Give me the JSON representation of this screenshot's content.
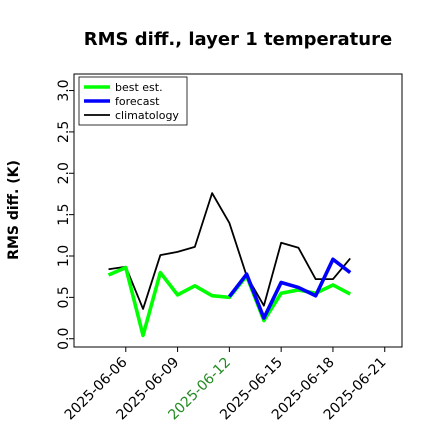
{
  "chart_data": {
    "type": "line",
    "title": "RMS diff., layer 1 temperature",
    "xlabel": "",
    "ylabel": "RMS diff. (K)",
    "xlim": [
      "2025-06-03",
      "2025-06-22"
    ],
    "ylim": [
      -0.1,
      3.2
    ],
    "yticks": [
      0.0,
      0.5,
      1.0,
      1.5,
      2.0,
      2.5,
      3.0
    ],
    "ytick_labels": [
      "0.0",
      "0.5",
      "1.0",
      "1.5",
      "2.0",
      "2.5",
      "3.0"
    ],
    "xticks": [
      "2025-06-06",
      "2025-06-09",
      "2025-06-12",
      "2025-06-15",
      "2025-06-18",
      "2025-06-21"
    ],
    "xtick_colors": [
      "#000000",
      "#000000",
      "#228b22",
      "#000000",
      "#000000",
      "#000000"
    ],
    "grid": false,
    "legend_position": "top-left",
    "x": [
      "2025-06-05",
      "2025-06-06",
      "2025-06-07",
      "2025-06-08",
      "2025-06-09",
      "2025-06-10",
      "2025-06-11",
      "2025-06-12",
      "2025-06-13",
      "2025-06-14",
      "2025-06-15",
      "2025-06-16",
      "2025-06-17",
      "2025-06-18",
      "2025-06-19"
    ],
    "series": [
      {
        "name": "best est.",
        "color": "#00ff00",
        "width": "thick",
        "values": [
          0.77,
          0.86,
          0.04,
          0.8,
          0.53,
          0.64,
          0.52,
          0.5,
          0.76,
          0.22,
          0.55,
          0.59,
          0.55,
          0.65,
          0.54
        ]
      },
      {
        "name": "forecast",
        "color": "#0000ff",
        "width": "thick",
        "values": [
          null,
          null,
          null,
          null,
          null,
          null,
          null,
          0.51,
          0.78,
          0.25,
          0.68,
          0.62,
          0.52,
          0.96,
          0.8
        ]
      },
      {
        "name": "climatology",
        "color": "#000000",
        "width": "thin",
        "values": [
          0.84,
          0.87,
          0.36,
          1.01,
          1.05,
          1.11,
          1.76,
          1.4,
          0.76,
          0.4,
          1.16,
          1.1,
          0.72,
          0.72,
          0.97
        ]
      }
    ]
  }
}
